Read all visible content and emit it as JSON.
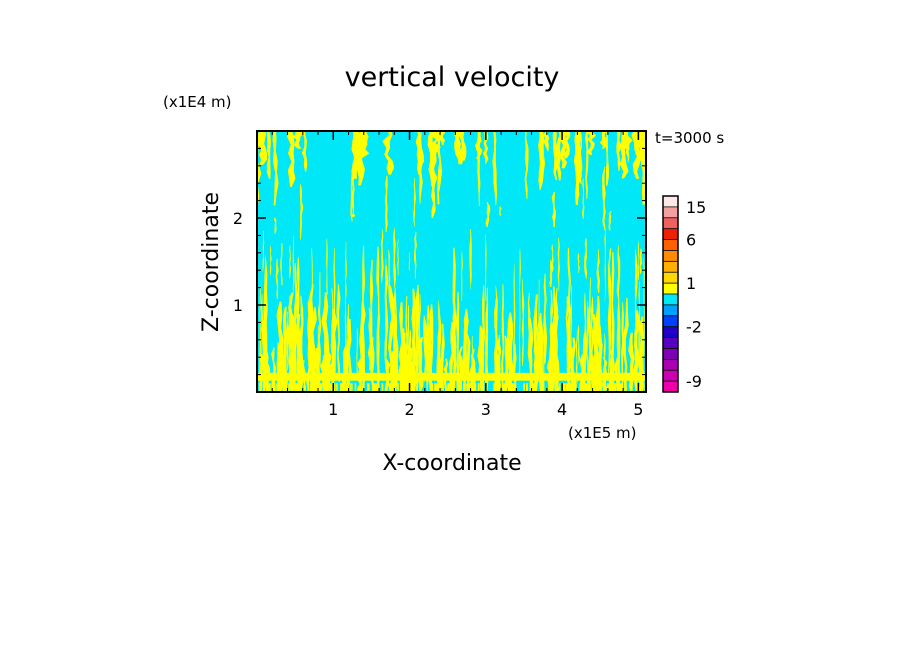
{
  "chart_data": {
    "type": "heatmap",
    "title": "vertical velocity",
    "xlabel": "X-coordinate",
    "ylabel": "Z-coordinate",
    "x_unit": "(x1E5 m)",
    "y_unit": "(x1E4 m)",
    "time_label": "t=3000 s",
    "xlim": [
      0,
      5.1
    ],
    "ylim": [
      0,
      3.0
    ],
    "x_ticks": [
      1,
      2,
      3,
      4,
      5
    ],
    "y_ticks": [
      1,
      2
    ],
    "background_color": "#00e8f8",
    "updraft_color": "#ffff00",
    "colorbar": {
      "bands": [
        {
          "from": -12,
          "to": -10,
          "color": "#ee00a8"
        },
        {
          "from": -10,
          "to": -8,
          "color": "#cc00b0"
        },
        {
          "from": -8,
          "to": -6,
          "color": "#aa00b4"
        },
        {
          "from": -6,
          "to": -4,
          "color": "#8000b8"
        },
        {
          "from": -4,
          "to": -3,
          "color": "#5800c0"
        },
        {
          "from": -3,
          "to": -2,
          "color": "#2000c8"
        },
        {
          "from": -2,
          "to": -1,
          "color": "#0040ff"
        },
        {
          "from": -1,
          "to": 0,
          "color": "#00a0ff"
        },
        {
          "from": 0,
          "to": 0.5,
          "color": "#00e8f8"
        },
        {
          "from": 0.5,
          "to": 1,
          "color": "#ffff00"
        },
        {
          "from": 1,
          "to": 1.5,
          "color": "#ffd800"
        },
        {
          "from": 1.5,
          "to": 2,
          "color": "#ffb000"
        },
        {
          "from": 2,
          "to": 3,
          "color": "#ff8c00"
        },
        {
          "from": 3,
          "to": 6,
          "color": "#ff6000"
        },
        {
          "from": 6,
          "to": 9,
          "color": "#ee2000"
        },
        {
          "from": 9,
          "to": 12,
          "color": "#f06060"
        },
        {
          "from": 12,
          "to": 15,
          "color": "#f4a0a0"
        },
        {
          "from": 15,
          "to": 24,
          "color": "#fce8e4"
        }
      ],
      "tick_labels": [
        {
          "value": 15,
          "label": "15"
        },
        {
          "value": 6,
          "label": "6"
        },
        {
          "value": 1,
          "label": "1"
        },
        {
          "value": -2,
          "label": "-2"
        },
        {
          "value": -9,
          "label": "-9"
        }
      ]
    }
  }
}
